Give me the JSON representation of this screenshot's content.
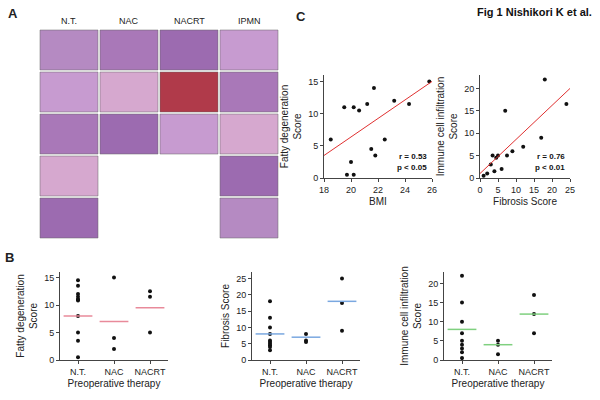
{
  "figure_title": "Fig 1 Nishikori K et al.",
  "panel_A": {
    "letter": "A",
    "columns": [
      {
        "label": "N.T.",
        "images": 5
      },
      {
        "label": "NAC",
        "images": 3
      },
      {
        "label": "NACRT",
        "images": 3
      },
      {
        "label": "IPMN",
        "images": 5
      }
    ]
  },
  "chart_data": [
    {
      "panel": "B",
      "type": "strip",
      "categories": [
        "N.T.",
        "NAC",
        "NACRT"
      ],
      "values": [
        [
          14.5,
          13.5,
          12,
          11.5,
          11,
          11,
          10.8,
          8,
          5,
          3.5,
          0.5
        ],
        [
          15,
          4,
          2
        ],
        [
          12.5,
          11.5,
          5
        ]
      ],
      "means": [
        8,
        7,
        9.5
      ],
      "color": "#e88a9a",
      "x_label": "Preoperative therapy",
      "y_label": "Fatty degeneration Score",
      "ylim": [
        0,
        16
      ],
      "yticks": [
        0,
        5,
        10,
        15
      ],
      "grid": false
    },
    {
      "panel": "B",
      "type": "strip",
      "categories": [
        "N.T.",
        "NAC",
        "NACRT"
      ],
      "values": [
        [
          18,
          13,
          10,
          8,
          6,
          5.5,
          5,
          4.5,
          4,
          3
        ],
        [
          8,
          6,
          5.5
        ],
        [
          25,
          17.5,
          9
        ]
      ],
      "means": [
        8,
        7,
        18
      ],
      "color": "#7aa8e0",
      "x_label": "Preoperative therapy",
      "y_label": "Fibrosis Score",
      "ylim": [
        0,
        27
      ],
      "yticks": [
        0,
        5,
        10,
        15,
        20,
        25
      ],
      "grid": false
    },
    {
      "panel": "B",
      "type": "strip",
      "categories": [
        "N.T.",
        "NAC",
        "NACRT"
      ],
      "values": [
        [
          22,
          15,
          10,
          7,
          5,
          4,
          3,
          2,
          0.5
        ],
        [
          5,
          4,
          1.5
        ],
        [
          17,
          12,
          7
        ]
      ],
      "means": [
        8,
        4,
        12
      ],
      "color": "#7fd07f",
      "x_label": "Preoperative therapy",
      "y_label": "Immune cell infiltration Score",
      "ylim": [
        0,
        23
      ],
      "yticks": [
        0,
        5,
        10,
        15,
        20
      ],
      "grid": false
    },
    {
      "panel": "C",
      "type": "scatter",
      "x": [
        18.5,
        19.5,
        20,
        19.7,
        20.2,
        20.2,
        20.6,
        21.2,
        21.5,
        21.7,
        21.8,
        22.5,
        23.2,
        24.3,
        25.8
      ],
      "y": [
        6,
        11,
        2.5,
        0.5,
        0.5,
        11,
        10.5,
        11.5,
        4.5,
        14,
        3.5,
        6,
        12,
        11.5,
        15
      ],
      "fit": {
        "x": [
          18,
          26
        ],
        "y": [
          3.5,
          15
        ]
      },
      "color": "#e03030",
      "annotations": [
        "r = 0.53",
        "p < 0.05"
      ],
      "x_label": "BMI",
      "y_label": "Fatty degeneration Score",
      "xlim": [
        18,
        26
      ],
      "xticks": [
        18,
        20,
        22,
        24,
        26
      ],
      "ylim": [
        0,
        16
      ],
      "yticks": [
        0,
        5,
        10,
        15
      ],
      "grid": false
    },
    {
      "panel": "C",
      "type": "scatter",
      "x": [
        1,
        2,
        3,
        3.5,
        4,
        4.5,
        5,
        6,
        7,
        7.5,
        9,
        12,
        17,
        18,
        24
      ],
      "y": [
        0.5,
        1,
        3,
        5,
        1.5,
        4.5,
        5,
        2,
        15,
        5,
        6,
        7,
        9,
        22,
        16.5
      ],
      "fit": {
        "x": [
          0,
          25
        ],
        "y": [
          1,
          20
        ]
      },
      "color": "#e03030",
      "annotations": [
        "r = 0.76",
        "p < 0.01"
      ],
      "x_label": "Fibrosis Score",
      "y_label": "Immune cell infiltration Score",
      "xlim": [
        0,
        25
      ],
      "xticks": [
        0,
        5,
        10,
        15,
        20,
        25
      ],
      "ylim": [
        0,
        23
      ],
      "yticks": [
        0,
        5,
        10,
        15,
        20
      ],
      "grid": false
    }
  ]
}
